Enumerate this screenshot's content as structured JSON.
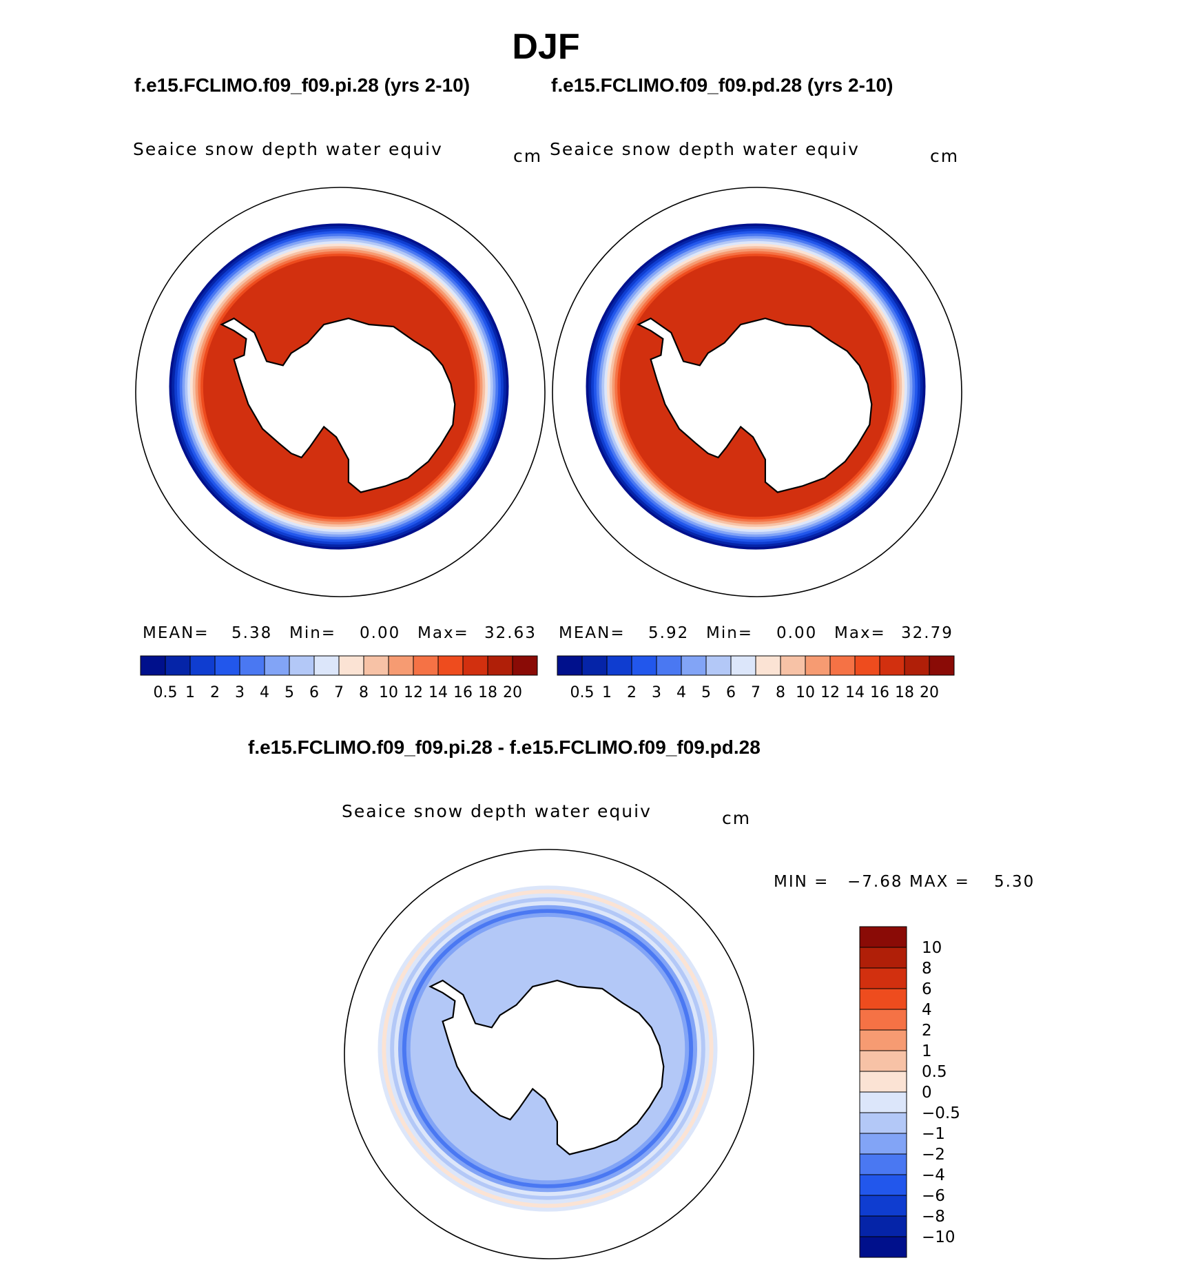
{
  "season": "DJF",
  "top_panels": [
    {
      "case": "f.e15.FCLIMO.f09_f09.pi.28 (yrs 2-10)",
      "variable": "Seaice snow depth water equiv",
      "units": "cm",
      "stats": {
        "mean_label": "MEAN=",
        "mean": "5.38",
        "min_label": "Min=",
        "min": "0.00",
        "max_label": "Max=",
        "max": "32.63"
      }
    },
    {
      "case": "f.e15.FCLIMO.f09_f09.pd.28 (yrs 2-10)",
      "variable": "Seaice snow depth water equiv",
      "units": "cm",
      "stats": {
        "mean_label": "MEAN=",
        "mean": "5.92",
        "min_label": "Min=",
        "min": "0.00",
        "max_label": "Max=",
        "max": "32.79"
      }
    }
  ],
  "diff_panel": {
    "title": "f.e15.FCLIMO.f09_f09.pi.28 - f.e15.FCLIMO.f09_f09.pd.28",
    "variable": "Seaice snow depth water equiv",
    "units": "cm",
    "stats": {
      "min_label": "MIN =",
      "min": "−7.68",
      "max_label": "MAX =",
      "max": "5.30"
    }
  },
  "colorbar_top": {
    "labels": [
      "0.5",
      "1",
      "2",
      "3",
      "4",
      "5",
      "6",
      "7",
      "8",
      "10",
      "12",
      "14",
      "16",
      "18",
      "20"
    ],
    "colors": [
      "#00108c",
      "#0524a8",
      "#0f3dd0",
      "#2257ec",
      "#4a78f2",
      "#82a4f6",
      "#b3c8f7",
      "#dce6fa",
      "#fbe3d4",
      "#f7c2a6",
      "#f69b72",
      "#f57245",
      "#ee4c1e",
      "#d2300f",
      "#b01f08",
      "#8a0b06"
    ]
  },
  "colorbar_diff": {
    "labels": [
      "10",
      "8",
      "6",
      "4",
      "2",
      "1",
      "0.5",
      "0",
      "−0.5",
      "−1",
      "−2",
      "−4",
      "−6",
      "−8",
      "−10"
    ],
    "colors": [
      "#8a0b06",
      "#b01f08",
      "#d2300f",
      "#ee4c1e",
      "#f57245",
      "#f69b72",
      "#f7c2a6",
      "#fbe3d4",
      "#dce6fa",
      "#b3c8f7",
      "#82a4f6",
      "#4a78f2",
      "#2257ec",
      "#0f3dd0",
      "#0524a8",
      "#00108c"
    ]
  }
}
